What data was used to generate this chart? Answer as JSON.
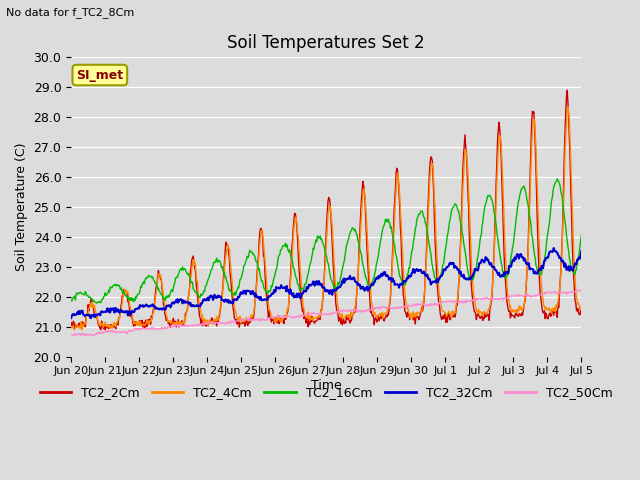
{
  "title": "Soil Temperatures Set 2",
  "subtitle": "No data for f_TC2_8Cm",
  "ylabel": "Soil Temperature (C)",
  "xlabel": "Time",
  "ylim": [
    20.0,
    30.0
  ],
  "yticks": [
    20.0,
    21.0,
    22.0,
    23.0,
    24.0,
    25.0,
    26.0,
    27.0,
    28.0,
    29.0,
    30.0
  ],
  "bg_color": "#dcdcdc",
  "annotation_box": "SI_met",
  "legend_entries": [
    "TC2_2Cm",
    "TC2_4Cm",
    "TC2_16Cm",
    "TC2_32Cm",
    "TC2_50Cm"
  ],
  "line_colors": [
    "#cc0000",
    "#ff8800",
    "#00bb00",
    "#0000cc",
    "#ff88cc"
  ],
  "line_widths": [
    1.0,
    1.0,
    1.0,
    1.5,
    1.0
  ],
  "xtick_positions": [
    0,
    1,
    2,
    3,
    4,
    5,
    6,
    7,
    8,
    9,
    10,
    11,
    12,
    13,
    14,
    15
  ],
  "xtick_labels": [
    "Jun 20",
    "Jun 21",
    "Jun 22",
    "Jun 23",
    "Jun 24",
    "Jun 25",
    "Jun 26",
    "Jun 27",
    "Jun 28",
    "Jun 29",
    "Jun 30",
    "Jul 1",
    "Jul 2",
    "Jul 3",
    "Jul 4",
    "Jul 5"
  ]
}
